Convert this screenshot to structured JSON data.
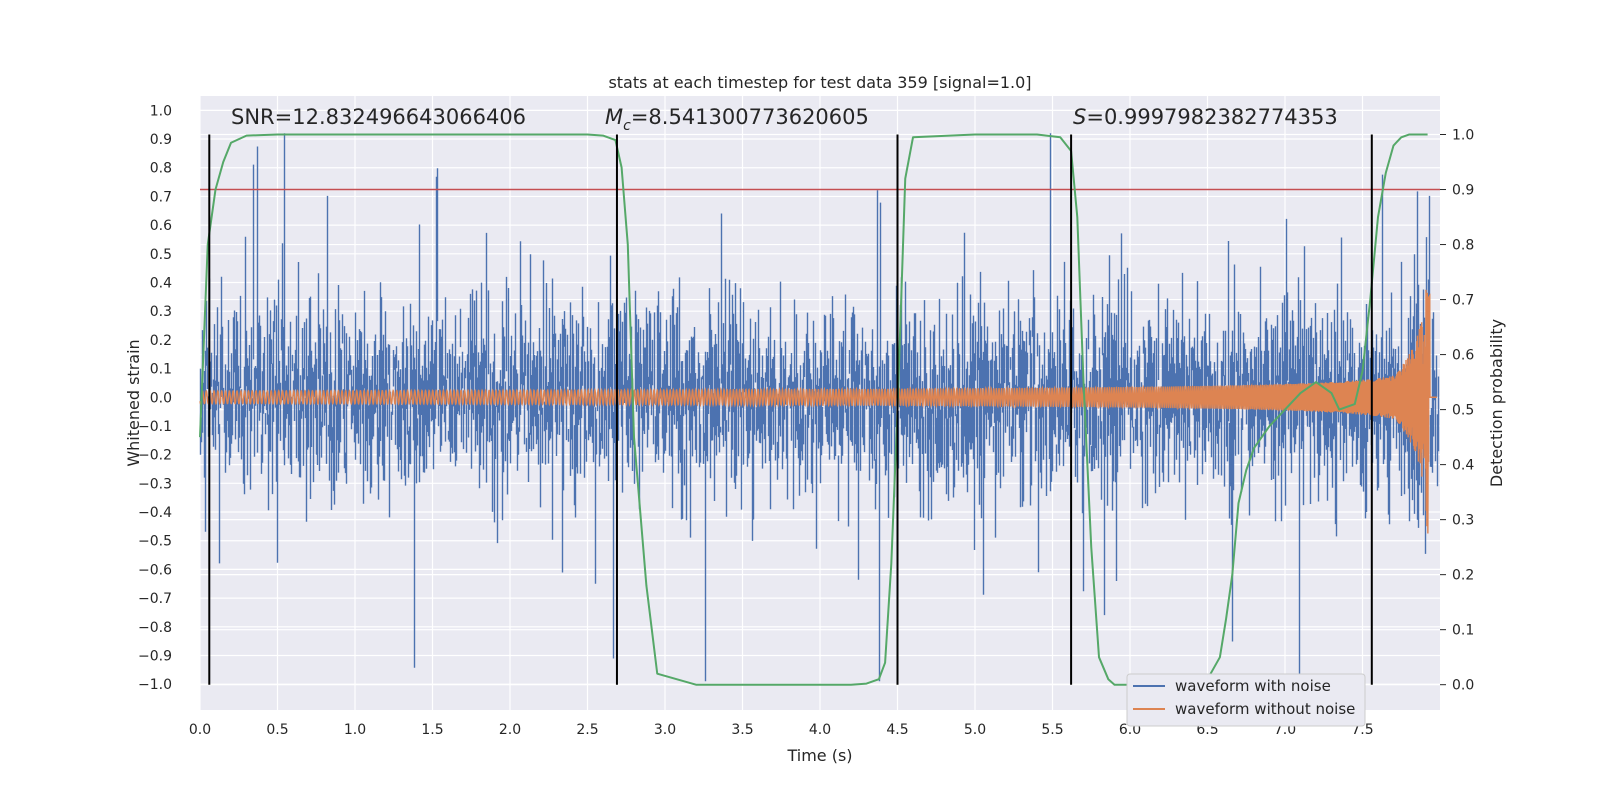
{
  "chart_data": {
    "type": "line",
    "title": "stats at each timestep for test data 359 [signal=1.0]",
    "xlabel": "Time (s)",
    "ylabel": "Whitened strain",
    "y2label": "Detection probability",
    "xlim": [
      0.0,
      8.0
    ],
    "ylim": [
      -1.09,
      1.05
    ],
    "y2lim": [
      -0.046,
      1.07
    ],
    "x_ticks": [
      "0.0",
      "0.5",
      "1.0",
      "1.5",
      "2.0",
      "2.5",
      "3.0",
      "3.5",
      "4.0",
      "4.5",
      "5.0",
      "5.5",
      "6.0",
      "6.5",
      "7.0",
      "7.5"
    ],
    "y_ticks": [
      "1.0",
      "0.9",
      "0.8",
      "0.7",
      "0.6",
      "0.5",
      "0.4",
      "0.3",
      "0.2",
      "0.1",
      "0.0",
      "−0.1",
      "−0.2",
      "−0.3",
      "−0.4",
      "−0.5",
      "−0.6",
      "−0.7",
      "−0.8",
      "−0.9",
      "−1.0"
    ],
    "y2_ticks": [
      "1.0",
      "0.9",
      "0.8",
      "0.7",
      "0.6",
      "0.5",
      "0.4",
      "0.3",
      "0.2",
      "0.1",
      "0.0"
    ],
    "grid": true,
    "legend_position": "lower right",
    "annotations": {
      "snr": "SNR=12.832496643066406",
      "mc_symbol": "M",
      "mc_sub": "c",
      "mc_value": "=8.541300773620605",
      "s_symbol": "S",
      "s_value": "=0.9997982382774353"
    },
    "series": [
      {
        "name": "waveform with noise",
        "color": "#4c72b0",
        "kind": "noisy strain, peaks approx ±0.9, signal merger near 7.9 s"
      },
      {
        "name": "waveform without noise",
        "color": "#dd8452",
        "kind": "chirp, amplitude 0.02 at 0 s rising to 0.53 at 7.88 s, ends 7.93 s"
      },
      {
        "name": "",
        "color": "#55a868",
        "axis": "right",
        "x": [
          0.0,
          0.05,
          0.1,
          0.15,
          0.2,
          0.3,
          0.5,
          1.0,
          1.5,
          2.0,
          2.5,
          2.6,
          2.68,
          2.72,
          2.76,
          2.8,
          2.88,
          2.95,
          3.2,
          3.5,
          4.0,
          4.2,
          4.3,
          4.38,
          4.42,
          4.46,
          4.5,
          4.55,
          4.6,
          5.0,
          5.4,
          5.55,
          5.62,
          5.66,
          5.7,
          5.75,
          5.8,
          5.86,
          5.9,
          6.0,
          6.3,
          6.5,
          6.58,
          6.62,
          6.66,
          6.7,
          6.75,
          6.8,
          6.9,
          7.0,
          7.1,
          7.2,
          7.3,
          7.35,
          7.45,
          7.5,
          7.55,
          7.6,
          7.65,
          7.7,
          7.75,
          7.8,
          7.86,
          7.92
        ],
        "y": [
          0.45,
          0.8,
          0.9,
          0.95,
          0.985,
          0.998,
          1.0,
          1.0,
          1.0,
          1.0,
          1.0,
          0.998,
          0.99,
          0.94,
          0.8,
          0.45,
          0.18,
          0.02,
          0.0,
          0.0,
          0.0,
          0.0,
          0.002,
          0.01,
          0.04,
          0.22,
          0.5,
          0.92,
          0.995,
          1.0,
          1.0,
          0.995,
          0.97,
          0.85,
          0.55,
          0.25,
          0.05,
          0.01,
          0.0,
          0.0,
          0.0,
          0.01,
          0.05,
          0.12,
          0.2,
          0.33,
          0.39,
          0.43,
          0.47,
          0.5,
          0.53,
          0.55,
          0.53,
          0.5,
          0.51,
          0.57,
          0.7,
          0.85,
          0.93,
          0.98,
          0.995,
          1.0,
          1.0,
          1.0
        ]
      }
    ],
    "threshold_line": {
      "y2": 0.9,
      "color": "#c44e52"
    },
    "vertical_markers": {
      "x": [
        0.06,
        2.69,
        4.5,
        5.62,
        7.56
      ],
      "color": "#000000"
    }
  }
}
